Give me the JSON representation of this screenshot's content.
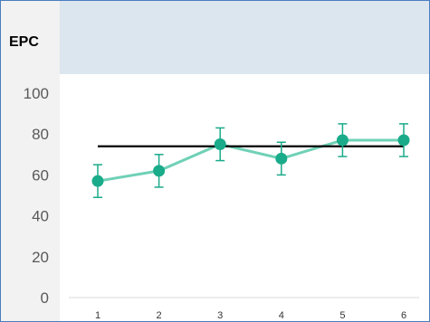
{
  "chart_data": {
    "type": "line",
    "title": "EPC",
    "xlabel": "",
    "ylabel": "",
    "ylim": [
      0,
      100
    ],
    "yticks": [
      "0",
      "20",
      "40",
      "60",
      "80",
      "100"
    ],
    "categories": [
      "1",
      "2",
      "3",
      "4",
      "5",
      "6"
    ],
    "series": [
      {
        "values": [
          57,
          62,
          75,
          68,
          77,
          77
        ],
        "error": [
          8,
          8,
          8,
          8,
          8,
          8
        ],
        "color": "#1aab8a",
        "line_color": "#6fd1b6"
      }
    ],
    "reference_line": {
      "value": 74,
      "color": "#000000"
    },
    "grid": false,
    "legend": "none"
  }
}
